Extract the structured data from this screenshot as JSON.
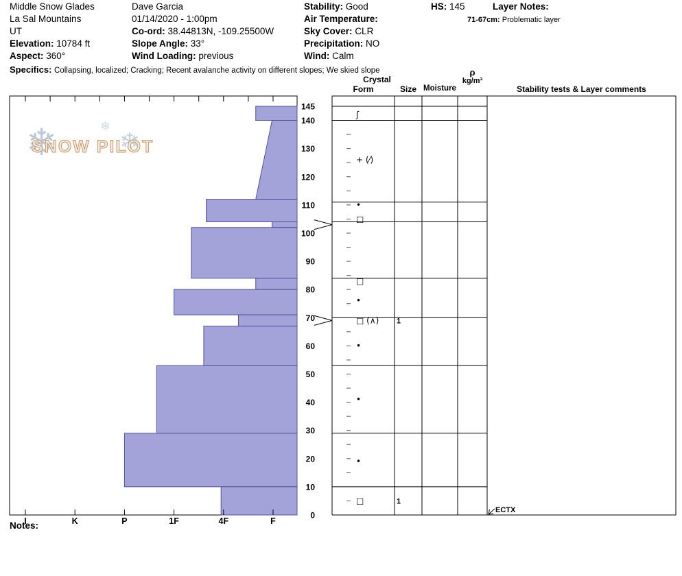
{
  "header": {
    "location": {
      "name": "Middle Snow Glades",
      "range": "La Sal Mountains",
      "state": "UT",
      "elevation_label": "Elevation:",
      "elevation": "10784 ft",
      "aspect_label": "Aspect:",
      "aspect": "360°"
    },
    "observation": {
      "observer": "Dave Garcia",
      "datetime": "01/14/2020 - 1:00pm",
      "coord_label": "Co-ord:",
      "coord": "38.44813N, -109.25500W",
      "slope_angle_label": "Slope Angle:",
      "slope_angle": "33°",
      "wind_loading_label": "Wind Loading:",
      "wind_loading": "previous"
    },
    "conditions": {
      "stability_label": "Stability:",
      "stability": "Good",
      "air_temp_label": "Air Temperature:",
      "air_temp": "",
      "sky_cover_label": "Sky Cover:",
      "sky_cover": "CLR",
      "precipitation_label": "Precipitation:",
      "precipitation": "NO",
      "wind_label": "Wind:",
      "wind": "Calm"
    },
    "hs_label": "HS:",
    "hs_value": "145",
    "layer_notes_label": "Layer Notes:",
    "layer_note_depth": "71-67cm:",
    "layer_note_text": "Problematic layer",
    "specifics_label": "Specifics:",
    "specifics_text": "Collapsing, localized;  Cracking;  Recent avalanche activity on different slopes;  We skied slope"
  },
  "logo": {
    "text": "SNOW PILOT",
    "flake": "❄"
  },
  "table_headers": {
    "crystal": "Crystal",
    "form": "Form",
    "size": "Size",
    "moisture": "Moisture",
    "rho_symbol": "ρ",
    "rho_unit": "kg/m³",
    "comments": "Stability tests & Layer comments"
  },
  "notes_label": "Notes:",
  "chart_data": {
    "type": "bar",
    "subtype": "snow-hardness-profile",
    "depth_unit": "cm",
    "snow_height_cm": 145,
    "depth_ticks": [
      145,
      140,
      130,
      120,
      110,
      100,
      90,
      80,
      70,
      60,
      50,
      40,
      30,
      20,
      10,
      0
    ],
    "hardness_labels": [
      "I",
      "K",
      "P",
      "1F",
      "4F",
      "F"
    ],
    "layers": [
      {
        "top_cm": 145,
        "bottom_cm": 140,
        "hardness_top": 4.65,
        "hardness_bottom": 4.65
      },
      {
        "top_cm": 140,
        "bottom_cm": 112,
        "hardness_top": 4.98,
        "hardness_bottom": 4.65
      },
      {
        "top_cm": 112,
        "bottom_cm": 104,
        "hardness_top": 3.65,
        "hardness_bottom": 3.65
      },
      {
        "top_cm": 104,
        "bottom_cm": 102,
        "hardness_top": 4.98,
        "hardness_bottom": 4.98
      },
      {
        "top_cm": 102,
        "bottom_cm": 84,
        "hardness_top": 3.35,
        "hardness_bottom": 3.35
      },
      {
        "top_cm": 84,
        "bottom_cm": 80,
        "hardness_top": 4.65,
        "hardness_bottom": 4.65
      },
      {
        "top_cm": 80,
        "bottom_cm": 71,
        "hardness_top": 3.0,
        "hardness_bottom": 3.0
      },
      {
        "top_cm": 71,
        "bottom_cm": 67,
        "hardness_top": 4.3,
        "hardness_bottom": 4.3
      },
      {
        "top_cm": 67,
        "bottom_cm": 53,
        "hardness_top": 3.6,
        "hardness_bottom": 3.6
      },
      {
        "top_cm": 53,
        "bottom_cm": 29,
        "hardness_top": 2.65,
        "hardness_bottom": 2.65
      },
      {
        "top_cm": 29,
        "bottom_cm": 10,
        "hardness_top": 2.0,
        "hardness_bottom": 2.0
      },
      {
        "top_cm": 10,
        "bottom_cm": 0,
        "hardness_top": 3.95,
        "hardness_bottom": 3.95
      }
    ],
    "layer_boundary_lines_cm": [
      145,
      140,
      111,
      104,
      84,
      70,
      53,
      29,
      10,
      0
    ],
    "grain_rows": [
      {
        "depth_cm": 142,
        "form": "ʃ",
        "size": ""
      },
      {
        "depth_cm": 126,
        "form": "+ (⁄)",
        "size": ""
      },
      {
        "depth_cm": 110,
        "form": "•",
        "size": ""
      },
      {
        "depth_cm": 105,
        "form": "□",
        "size": ""
      },
      {
        "depth_cm": 83,
        "form": "□",
        "size": ""
      },
      {
        "depth_cm": 76,
        "form": "•",
        "size": ""
      },
      {
        "depth_cm": 69,
        "form": "□ (∧)",
        "size": "1"
      },
      {
        "depth_cm": 60,
        "form": "•",
        "size": ""
      },
      {
        "depth_cm": 41,
        "form": "•",
        "size": ""
      },
      {
        "depth_cm": 19,
        "form": "•",
        "size": ""
      },
      {
        "depth_cm": 5,
        "form": "□",
        "size": "1"
      }
    ],
    "thin_layer_pointers_cm": [
      103,
      69
    ],
    "stability_test": {
      "label": "ECTX",
      "depth_cm": 0
    },
    "colors": {
      "layer_fill": "#a3a3da",
      "layer_stroke": "#50509a"
    }
  }
}
